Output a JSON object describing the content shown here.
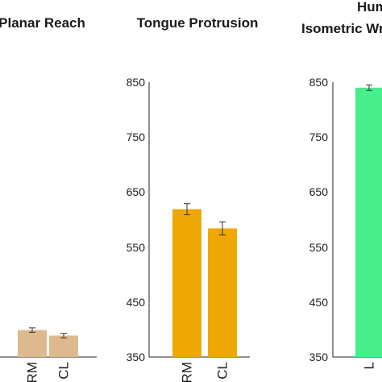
{
  "chart_data": [
    {
      "type": "bar",
      "title": "Planar Reach",
      "categories": [
        "RM",
        "CL"
      ],
      "values": [
        399,
        389
      ],
      "error": [
        4,
        4
      ],
      "colors": [
        "#DDB98D",
        "#DDB98D"
      ],
      "ylim": [
        350,
        850
      ],
      "yticks": [],
      "ytick_labels": []
    },
    {
      "type": "bar",
      "title": "Tongue Protrusion",
      "categories": [
        "RM",
        "CL"
      ],
      "values": [
        619,
        584
      ],
      "error": [
        10,
        12
      ],
      "colors": [
        "#EEA805",
        "#EEA805"
      ],
      "ylim": [
        350,
        850
      ],
      "yticks": [
        350,
        450,
        550,
        650,
        750,
        850
      ],
      "ytick_labels": [
        "350",
        "450",
        "550",
        "650",
        "750",
        "850"
      ]
    },
    {
      "type": "bar",
      "title_lines": [
        "Hum",
        "Isometric Wris"
      ],
      "categories": [
        "L"
      ],
      "values": [
        840
      ],
      "error": [
        5
      ],
      "colors": [
        "#47EE8A"
      ],
      "ylim": [
        350,
        850
      ],
      "yticks": [
        350,
        450,
        550,
        650,
        750,
        850
      ],
      "ytick_labels": [
        "350",
        "450",
        "550",
        "650",
        "750",
        "850"
      ]
    }
  ]
}
